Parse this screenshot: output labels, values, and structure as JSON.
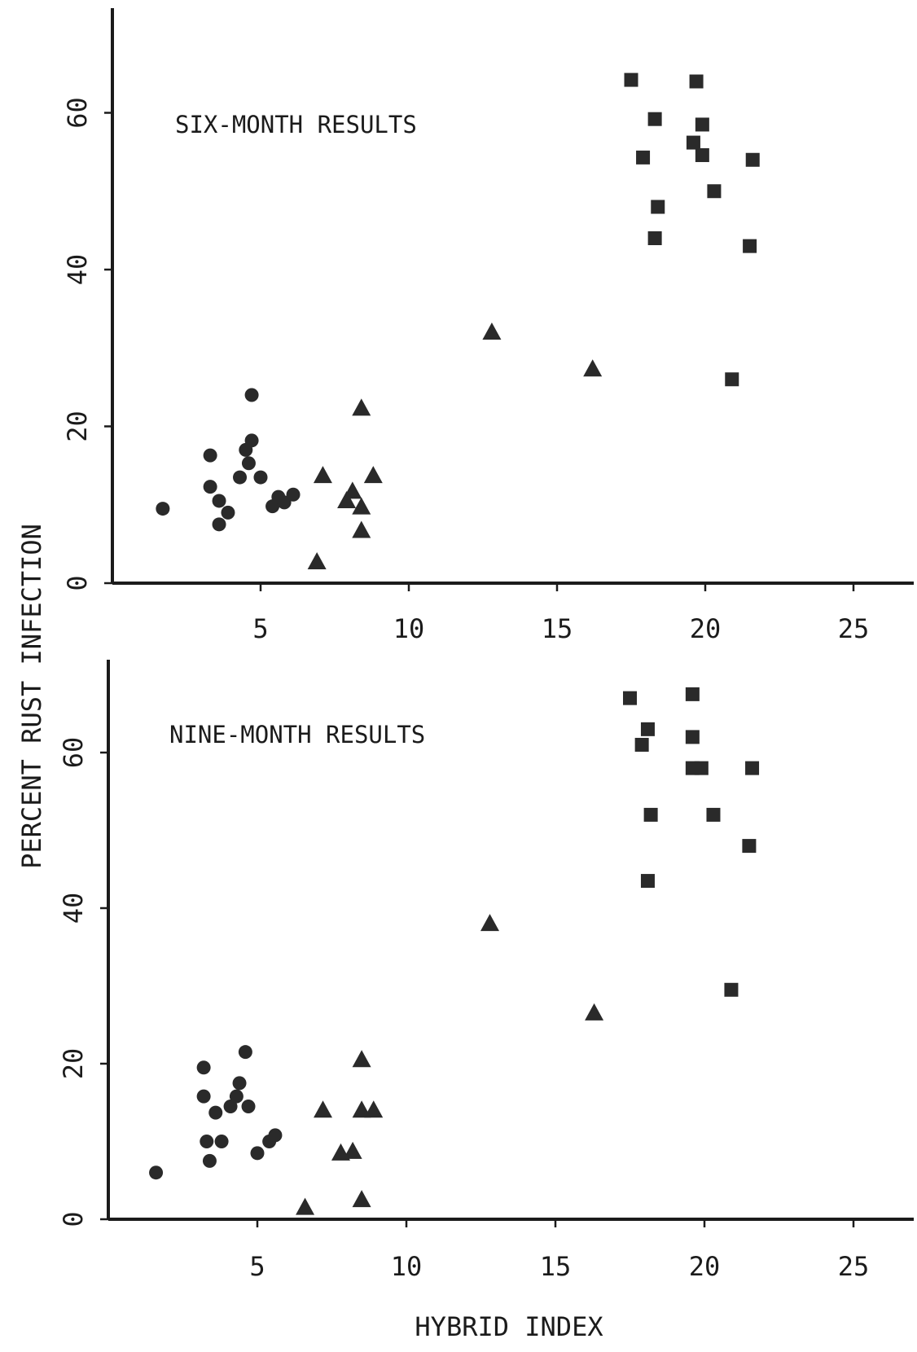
{
  "chart_data": [
    {
      "type": "scatter",
      "title": "SIX-MONTH RESULTS",
      "xlabel": "HYBRID INDEX",
      "ylabel": "PERCENT RUST INFECTION",
      "xlim": [
        0,
        25
      ],
      "ylim": [
        0,
        70
      ],
      "xticks": [
        "5",
        "10",
        "15",
        "20",
        "25"
      ],
      "yticks": [
        "0",
        "20",
        "40",
        "60"
      ],
      "series": [
        {
          "marker": "circle",
          "color": "#2a2a2a",
          "points": [
            [
              1.7,
              9.5
            ],
            [
              3.3,
              16.3
            ],
            [
              3.3,
              12.3
            ],
            [
              3.6,
              10.5
            ],
            [
              3.6,
              7.5
            ],
            [
              3.9,
              9.0
            ],
            [
              4.3,
              13.5
            ],
            [
              4.5,
              17.0
            ],
            [
              4.6,
              15.3
            ],
            [
              4.7,
              18.2
            ],
            [
              4.7,
              24.0
            ],
            [
              5.0,
              13.5
            ],
            [
              5.4,
              9.8
            ],
            [
              5.6,
              11.0
            ],
            [
              5.8,
              10.3
            ],
            [
              6.1,
              11.3
            ]
          ]
        },
        {
          "marker": "triangle",
          "color": "#2a2a2a",
          "points": [
            [
              6.9,
              2.7
            ],
            [
              7.1,
              13.7
            ],
            [
              7.9,
              10.5
            ],
            [
              8.1,
              11.7
            ],
            [
              8.4,
              22.3
            ],
            [
              8.4,
              9.7
            ],
            [
              8.4,
              6.7
            ],
            [
              8.8,
              13.7
            ],
            [
              12.8,
              32.0
            ],
            [
              16.2,
              27.3
            ]
          ]
        },
        {
          "marker": "square",
          "color": "#2a2a2a",
          "points": [
            [
              17.5,
              64.2
            ],
            [
              17.9,
              54.3
            ],
            [
              18.3,
              59.2
            ],
            [
              18.4,
              48.0
            ],
            [
              18.3,
              44.0
            ],
            [
              19.7,
              64.0
            ],
            [
              19.6,
              56.2
            ],
            [
              19.9,
              58.5
            ],
            [
              19.9,
              54.6
            ],
            [
              20.3,
              50.0
            ],
            [
              20.9,
              26.0
            ],
            [
              21.5,
              43.0
            ],
            [
              21.6,
              54.0
            ]
          ]
        }
      ]
    },
    {
      "type": "scatter",
      "title": "NINE-MONTH RESULTS",
      "xlabel": "HYBRID INDEX",
      "ylabel": "PERCENT RUST INFECTION",
      "xlim": [
        0,
        25
      ],
      "ylim": [
        0,
        70
      ],
      "xticks": [
        "5",
        "10",
        "15",
        "20",
        "25"
      ],
      "yticks": [
        "0",
        "20",
        "40",
        "60"
      ],
      "series": [
        {
          "marker": "circle",
          "color": "#2a2a2a",
          "points": [
            [
              1.6,
              6.0
            ],
            [
              3.2,
              19.5
            ],
            [
              3.2,
              15.8
            ],
            [
              3.3,
              10.0
            ],
            [
              3.4,
              7.5
            ],
            [
              3.6,
              13.7
            ],
            [
              3.8,
              10.0
            ],
            [
              4.1,
              14.5
            ],
            [
              4.3,
              15.8
            ],
            [
              4.4,
              17.5
            ],
            [
              4.6,
              21.5
            ],
            [
              4.7,
              14.5
            ],
            [
              5.0,
              8.5
            ],
            [
              5.4,
              10.0
            ],
            [
              5.6,
              10.8
            ]
          ]
        },
        {
          "marker": "triangle",
          "color": "#2a2a2a",
          "points": [
            [
              6.6,
              1.5
            ],
            [
              7.2,
              14.0
            ],
            [
              7.8,
              8.5
            ],
            [
              8.2,
              8.7
            ],
            [
              8.5,
              20.5
            ],
            [
              8.5,
              14.0
            ],
            [
              8.5,
              2.5
            ],
            [
              8.9,
              14.0
            ],
            [
              12.8,
              38.0
            ],
            [
              16.3,
              26.5
            ]
          ]
        },
        {
          "marker": "square",
          "color": "#2a2a2a",
          "points": [
            [
              17.5,
              67.0
            ],
            [
              17.9,
              61.0
            ],
            [
              18.1,
              63.0
            ],
            [
              18.2,
              52.0
            ],
            [
              18.1,
              43.5
            ],
            [
              19.6,
              67.5
            ],
            [
              19.6,
              62.0
            ],
            [
              19.6,
              58.0
            ],
            [
              19.9,
              58.0
            ],
            [
              20.3,
              52.0
            ],
            [
              20.9,
              29.5
            ],
            [
              21.5,
              48.0
            ],
            [
              21.6,
              58.0
            ]
          ]
        }
      ]
    }
  ]
}
